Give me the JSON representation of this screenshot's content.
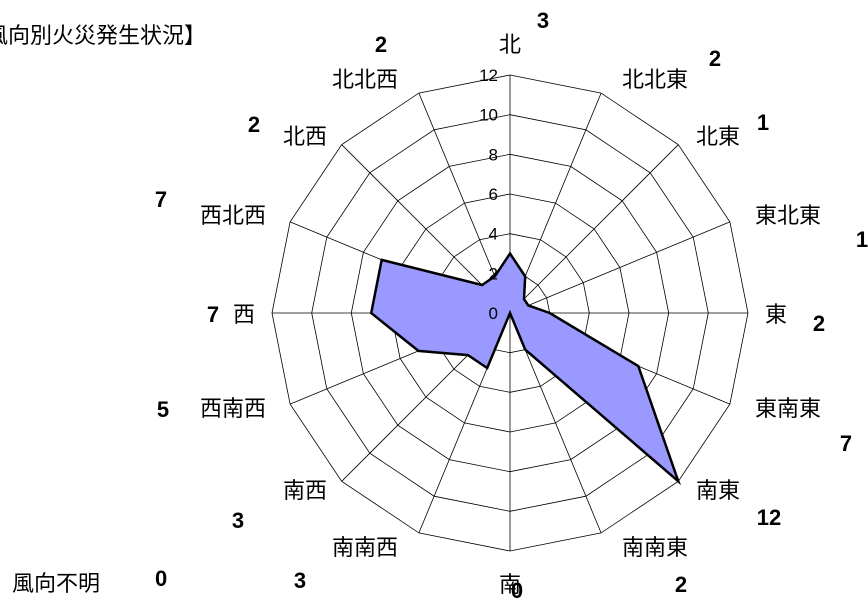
{
  "title": "風向別火災発生状況】",
  "unknown": {
    "label": "風向不明",
    "value": "0"
  },
  "chart_data": {
    "type": "radar",
    "title": "風向別火災発生状況】",
    "categories": [
      "北",
      "北北東",
      "北東",
      "東北東",
      "東",
      "東南東",
      "南東",
      "南南東",
      "南",
      "南南西",
      "南西",
      "西南西",
      "西",
      "西北西",
      "北西",
      "北北西"
    ],
    "values": [
      3,
      2,
      1,
      1,
      2,
      7,
      12,
      2,
      0,
      3,
      3,
      5,
      7,
      7,
      2,
      2
    ],
    "rlim": [
      0,
      12
    ],
    "ticks": [
      0,
      2,
      4,
      6,
      8,
      10,
      12
    ],
    "grid": true,
    "fill_color": "#9999ff",
    "line_color": "#000000"
  }
}
